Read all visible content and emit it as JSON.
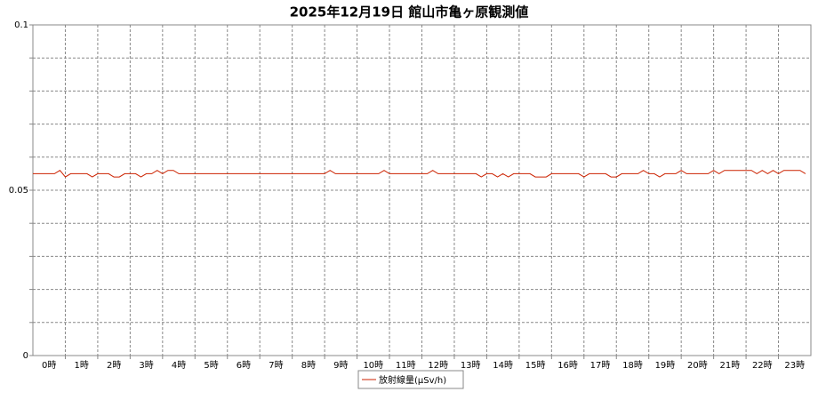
{
  "chart_data": {
    "type": "line",
    "title": "2025年12月19日 館山市亀ヶ原観測値",
    "x": [
      0,
      10,
      20,
      30,
      40,
      50,
      60,
      70,
      80,
      90,
      100,
      110,
      120,
      130,
      140,
      150,
      160,
      170,
      180,
      190,
      200,
      210,
      220,
      230,
      240,
      250,
      260,
      270,
      280,
      290,
      300,
      310,
      320,
      330,
      340,
      350,
      360,
      370,
      380,
      390,
      400,
      410,
      420,
      430,
      440,
      450,
      460,
      470,
      480,
      490,
      500,
      510,
      520,
      530,
      540,
      550,
      560,
      570,
      580,
      590,
      600,
      610,
      620,
      630,
      640,
      650,
      660,
      670,
      680,
      690,
      700,
      710,
      720,
      730,
      740,
      750,
      760,
      770,
      780,
      790,
      800,
      810,
      820,
      830,
      840,
      850,
      860,
      870,
      880,
      890,
      900,
      910,
      920,
      930,
      940,
      950,
      960,
      970,
      980,
      990,
      1000,
      1010,
      1020,
      1030,
      1040,
      1050,
      1060,
      1070,
      1080,
      1090,
      1100,
      1110,
      1120,
      1130,
      1140,
      1150,
      1160,
      1170,
      1180,
      1190,
      1200,
      1210,
      1220,
      1230,
      1240,
      1250,
      1260,
      1270,
      1280,
      1290,
      1300,
      1310,
      1320,
      1330,
      1340,
      1350,
      1360,
      1370,
      1380,
      1390,
      1400,
      1410,
      1420,
      1430
    ],
    "series": [
      {
        "name": "放射線量(μSv/h)",
        "color": "#cc2200",
        "values": [
          0.055,
          0.055,
          0.055,
          0.055,
          0.055,
          0.056,
          0.054,
          0.055,
          0.055,
          0.055,
          0.055,
          0.054,
          0.055,
          0.055,
          0.055,
          0.054,
          0.054,
          0.055,
          0.055,
          0.055,
          0.054,
          0.055,
          0.055,
          0.056,
          0.055,
          0.056,
          0.056,
          0.055,
          0.055,
          0.055,
          0.055,
          0.055,
          0.055,
          0.055,
          0.055,
          0.055,
          0.055,
          0.055,
          0.055,
          0.055,
          0.055,
          0.055,
          0.055,
          0.055,
          0.055,
          0.055,
          0.055,
          0.055,
          0.055,
          0.055,
          0.055,
          0.055,
          0.055,
          0.055,
          0.055,
          0.056,
          0.055,
          0.055,
          0.055,
          0.055,
          0.055,
          0.055,
          0.055,
          0.055,
          0.055,
          0.056,
          0.055,
          0.055,
          0.055,
          0.055,
          0.055,
          0.055,
          0.055,
          0.055,
          0.056,
          0.055,
          0.055,
          0.055,
          0.055,
          0.055,
          0.055,
          0.055,
          0.055,
          0.054,
          0.055,
          0.055,
          0.054,
          0.055,
          0.054,
          0.055,
          0.055,
          0.055,
          0.055,
          0.054,
          0.054,
          0.054,
          0.055,
          0.055,
          0.055,
          0.055,
          0.055,
          0.055,
          0.054,
          0.055,
          0.055,
          0.055,
          0.055,
          0.054,
          0.054,
          0.055,
          0.055,
          0.055,
          0.055,
          0.056,
          0.055,
          0.055,
          0.054,
          0.055,
          0.055,
          0.055,
          0.056,
          0.055,
          0.055,
          0.055,
          0.055,
          0.055,
          0.056,
          0.055,
          0.056,
          0.056,
          0.056,
          0.056,
          0.056,
          0.056,
          0.055,
          0.056,
          0.055,
          0.056,
          0.055,
          0.056,
          0.056,
          0.056,
          0.056,
          0.055
        ]
      }
    ],
    "xlim": [
      0,
      1440
    ],
    "xticks": [
      {
        "value": 30,
        "label": "0時"
      },
      {
        "value": 90,
        "label": "1時"
      },
      {
        "value": 150,
        "label": "2時"
      },
      {
        "value": 210,
        "label": "3時"
      },
      {
        "value": 270,
        "label": "4時"
      },
      {
        "value": 330,
        "label": "5時"
      },
      {
        "value": 390,
        "label": "6時"
      },
      {
        "value": 450,
        "label": "7時"
      },
      {
        "value": 510,
        "label": "8時"
      },
      {
        "value": 570,
        "label": "9時"
      },
      {
        "value": 630,
        "label": "10時"
      },
      {
        "value": 690,
        "label": "11時"
      },
      {
        "value": 750,
        "label": "12時"
      },
      {
        "value": 810,
        "label": "13時"
      },
      {
        "value": 870,
        "label": "14時"
      },
      {
        "value": 930,
        "label": "15時"
      },
      {
        "value": 990,
        "label": "16時"
      },
      {
        "value": 1050,
        "label": "17時"
      },
      {
        "value": 1110,
        "label": "18時"
      },
      {
        "value": 1170,
        "label": "19時"
      },
      {
        "value": 1230,
        "label": "20時"
      },
      {
        "value": 1290,
        "label": "21時"
      },
      {
        "value": 1350,
        "label": "22時"
      },
      {
        "value": 1410,
        "label": "23時"
      }
    ],
    "minor_xticks": [
      60,
      120,
      180,
      240,
      300,
      360,
      420,
      480,
      540,
      600,
      660,
      720,
      780,
      840,
      900,
      960,
      1020,
      1080,
      1140,
      1200,
      1260,
      1320,
      1380
    ],
    "ylim": [
      0,
      0.1
    ],
    "yticks": [
      0,
      0.05,
      0.1
    ],
    "minor_yticks": [
      0.01,
      0.02,
      0.03,
      0.04,
      0.06,
      0.07,
      0.08,
      0.09
    ],
    "grid": true,
    "legend": "bottom"
  }
}
